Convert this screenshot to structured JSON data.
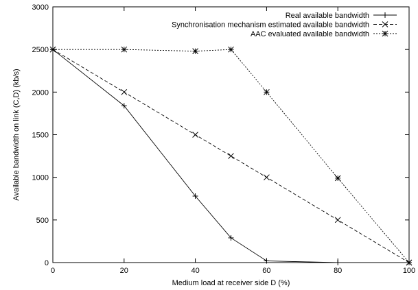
{
  "chart_data": {
    "type": "line",
    "title": "",
    "xlabel": "Medium load at receiver side D (%)",
    "ylabel": "Available bandwidth on link (C,D) (kb/s)",
    "xlim": [
      0,
      100
    ],
    "ylim": [
      0,
      3000
    ],
    "x_ticks": [
      "0",
      "20",
      "40",
      "60",
      "80",
      "100"
    ],
    "y_ticks": [
      "0",
      "500",
      "1000",
      "1500",
      "2000",
      "2500",
      "3000"
    ],
    "grid": false,
    "legend_position": "top-right",
    "series": [
      {
        "name": "Real available bandwidth",
        "marker": "plus",
        "dash": "solid",
        "color": "#000000",
        "x": [
          0,
          20,
          40,
          50,
          60,
          80,
          100
        ],
        "y": [
          2500,
          1840,
          780,
          290,
          20,
          0,
          0
        ]
      },
      {
        "name": "Synchronisation mechanism estimated available bandwidth",
        "marker": "cross",
        "dash": "dashed",
        "color": "#000000",
        "x": [
          0,
          20,
          40,
          50,
          60,
          80,
          100
        ],
        "y": [
          2500,
          2000,
          1500,
          1250,
          1000,
          500,
          0
        ]
      },
      {
        "name": "AAC evaluated available bandwidth",
        "marker": "star",
        "dash": "dotted",
        "color": "#000000",
        "x": [
          0,
          20,
          40,
          50,
          60,
          80,
          100
        ],
        "y": [
          2500,
          2500,
          2480,
          2500,
          2000,
          990,
          0
        ]
      }
    ]
  }
}
